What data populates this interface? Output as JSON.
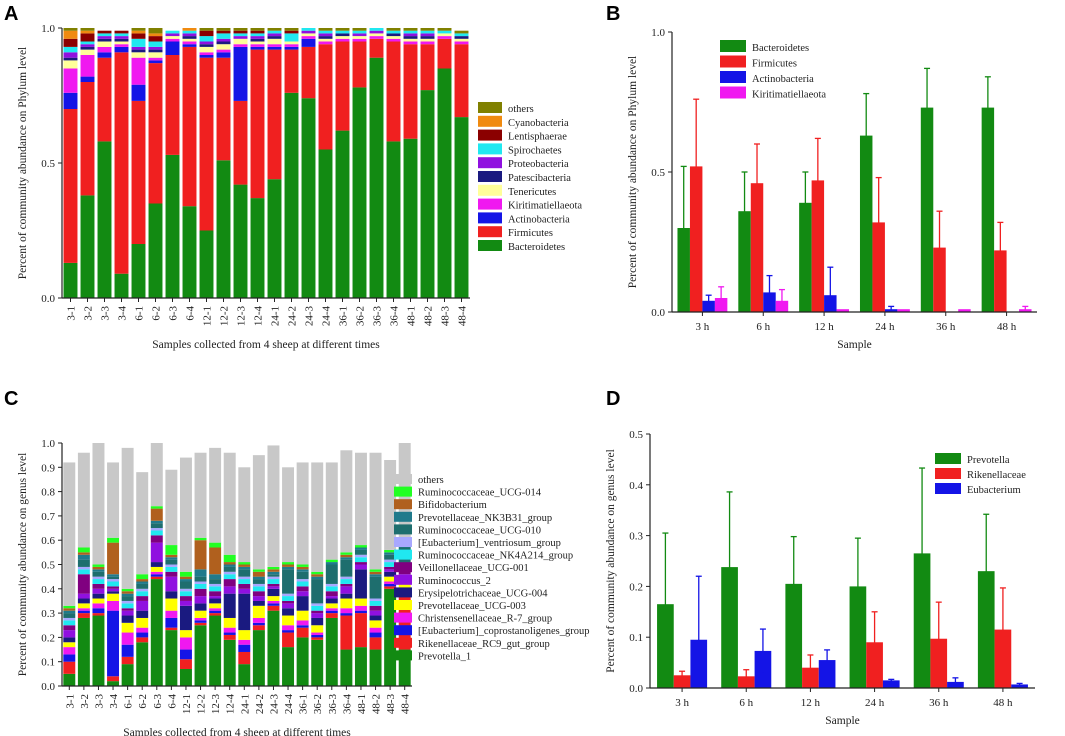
{
  "panel_labels": [
    "A",
    "B",
    "C",
    "D"
  ],
  "chart_data": [
    {
      "panel": "A",
      "type": "bar",
      "stacked": true,
      "xlabel": "Samples collected from 4 sheep at different times",
      "ylabel": "Percent of community abundance on Phylum level",
      "ylim": [
        0,
        1.0
      ],
      "yticks": [
        "0.0",
        "0.5",
        "1.0"
      ],
      "legend_position": "right",
      "categories": [
        "3-1",
        "3-2",
        "3-3",
        "3-4",
        "6-1",
        "6-2",
        "6-3",
        "6-4",
        "12-1",
        "12-2",
        "12-3",
        "12-4",
        "24-1",
        "24-2",
        "24-3",
        "24-4",
        "36-1",
        "36-2",
        "36-3",
        "36-4",
        "48-1",
        "48-2",
        "48-3",
        "48-4"
      ],
      "series": [
        {
          "name": "Bacteroidetes",
          "color": "#128a12",
          "values": [
            0.13,
            0.38,
            0.58,
            0.09,
            0.2,
            0.35,
            0.53,
            0.34,
            0.25,
            0.51,
            0.42,
            0.37,
            0.44,
            0.76,
            0.74,
            0.55,
            0.62,
            0.78,
            0.89,
            0.58,
            0.59,
            0.77,
            0.85,
            0.67
          ]
        },
        {
          "name": "Firmicutes",
          "color": "#f02020",
          "values": [
            0.57,
            0.42,
            0.31,
            0.82,
            0.53,
            0.52,
            0.37,
            0.59,
            0.64,
            0.38,
            0.31,
            0.55,
            0.48,
            0.16,
            0.19,
            0.39,
            0.33,
            0.17,
            0.07,
            0.37,
            0.35,
            0.17,
            0.11,
            0.27
          ]
        },
        {
          "name": "Actinobacteria",
          "color": "#1414e6",
          "values": [
            0.06,
            0.02,
            0.02,
            0.02,
            0.06,
            0.01,
            0.05,
            0.01,
            0.01,
            0.02,
            0.2,
            0.01,
            0.01,
            0.01,
            0.03,
            0.0,
            0.0,
            0.0,
            0.0,
            0.0,
            0.0,
            0.0,
            0.0,
            0.0
          ]
        },
        {
          "name": "Kiritimatiellaeota",
          "color": "#f018f0",
          "values": [
            0.09,
            0.08,
            0.02,
            0.01,
            0.1,
            0.01,
            0.01,
            0.01,
            0.01,
            0.01,
            0.01,
            0.01,
            0.01,
            0.01,
            0.01,
            0.01,
            0.01,
            0.01,
            0.01,
            0.01,
            0.01,
            0.01,
            0.01,
            0.01
          ]
        },
        {
          "name": "Tenericutes",
          "color": "#ffff99",
          "values": [
            0.03,
            0.02,
            0.02,
            0.01,
            0.02,
            0.02,
            0.01,
            0.01,
            0.02,
            0.02,
            0.02,
            0.01,
            0.02,
            0.01,
            0.01,
            0.01,
            0.01,
            0.01,
            0.01,
            0.01,
            0.01,
            0.01,
            0.01,
            0.01
          ]
        },
        {
          "name": "Patescibacteria",
          "color": "#1a1a80",
          "values": [
            0.01,
            0.01,
            0.01,
            0.01,
            0.01,
            0.01,
            0.0,
            0.01,
            0.01,
            0.01,
            0.0,
            0.01,
            0.01,
            0.0,
            0.0,
            0.01,
            0.01,
            0.0,
            0.0,
            0.01,
            0.01,
            0.01,
            0.0,
            0.01
          ]
        },
        {
          "name": "Proteobacteria",
          "color": "#9010e0",
          "values": [
            0.02,
            0.01,
            0.01,
            0.01,
            0.01,
            0.01,
            0.01,
            0.01,
            0.01,
            0.01,
            0.01,
            0.01,
            0.01,
            0.0,
            0.01,
            0.01,
            0.0,
            0.01,
            0.01,
            0.0,
            0.01,
            0.01,
            0.0,
            0.0
          ]
        },
        {
          "name": "Spirochaetes",
          "color": "#20e8f0",
          "values": [
            0.02,
            0.01,
            0.01,
            0.01,
            0.03,
            0.02,
            0.01,
            0.01,
            0.02,
            0.02,
            0.01,
            0.01,
            0.01,
            0.03,
            0.01,
            0.01,
            0.01,
            0.01,
            0.01,
            0.01,
            0.01,
            0.01,
            0.01,
            0.01
          ]
        },
        {
          "name": "Lentisphaerae",
          "color": "#8b0000",
          "values": [
            0.03,
            0.03,
            0.01,
            0.01,
            0.02,
            0.02,
            0.0,
            0.0,
            0.02,
            0.01,
            0.01,
            0.01,
            0.0,
            0.01,
            0.0,
            0.0,
            0.0,
            0.0,
            0.0,
            0.0,
            0.0,
            0.0,
            0.0,
            0.0
          ]
        },
        {
          "name": "Cyanobacteria",
          "color": "#f08a10",
          "values": [
            0.03,
            0.01,
            0.0,
            0.0,
            0.01,
            0.01,
            0.0,
            0.01,
            0.0,
            0.0,
            0.0,
            0.0,
            0.0,
            0.0,
            0.0,
            0.0,
            0.0,
            0.0,
            0.0,
            0.0,
            0.0,
            0.0,
            0.0,
            0.0
          ]
        },
        {
          "name": "others",
          "color": "#808000",
          "values": [
            0.01,
            0.01,
            0.0,
            0.0,
            0.01,
            0.02,
            0.0,
            0.0,
            0.01,
            0.01,
            0.01,
            0.01,
            0.01,
            0.01,
            0.0,
            0.01,
            0.01,
            0.01,
            0.0,
            0.01,
            0.01,
            0.01,
            0.01,
            0.01
          ]
        }
      ]
    },
    {
      "panel": "B",
      "type": "bar",
      "error_bars": true,
      "xlabel": "Sample",
      "ylabel": "Percent of community abundance on Phylum level",
      "ylim": [
        0,
        1.0
      ],
      "yticks": [
        "0.0",
        "0.5",
        "1.0"
      ],
      "legend_position": "top-left",
      "categories": [
        "3 h",
        "6 h",
        "12 h",
        "24 h",
        "36 h",
        "48 h"
      ],
      "series": [
        {
          "name": "Bacteroidetes",
          "color": "#128a12",
          "values": [
            0.3,
            0.36,
            0.39,
            0.63,
            0.73,
            0.73
          ],
          "errors": [
            0.22,
            0.14,
            0.11,
            0.15,
            0.14,
            0.11
          ]
        },
        {
          "name": "Firmicutes",
          "color": "#f02020",
          "values": [
            0.52,
            0.46,
            0.47,
            0.32,
            0.23,
            0.22
          ],
          "errors": [
            0.24,
            0.14,
            0.15,
            0.16,
            0.13,
            0.1
          ]
        },
        {
          "name": "Actinobacteria",
          "color": "#1414e6",
          "values": [
            0.04,
            0.07,
            0.06,
            0.01,
            0.0,
            0.0
          ],
          "errors": [
            0.02,
            0.06,
            0.1,
            0.01,
            0.0,
            0.0
          ]
        },
        {
          "name": "Kiritimatiellaeota",
          "color": "#f018f0",
          "values": [
            0.05,
            0.04,
            0.01,
            0.01,
            0.01,
            0.01
          ],
          "errors": [
            0.04,
            0.04,
            0.0,
            0.0,
            0.0,
            0.01
          ]
        }
      ]
    },
    {
      "panel": "C",
      "type": "bar",
      "stacked": true,
      "xlabel": "Samples collected from 4 sheep at different times",
      "ylabel": "Percent of community abundance on genus level",
      "ylim": [
        0,
        1.0
      ],
      "yticks": [
        "0.0",
        "0.1",
        "0.2",
        "0.3",
        "0.4",
        "0.5",
        "0.6",
        "0.7",
        "0.8",
        "0.9",
        "1.0"
      ],
      "legend_position": "right",
      "categories": [
        "3-1",
        "3-2",
        "3-3",
        "3-4",
        "6-1",
        "6-2",
        "6-3",
        "6-4",
        "12-1",
        "12-2",
        "12-3",
        "12-4",
        "24-1",
        "24-2",
        "24-3",
        "24-4",
        "36-1",
        "36-2",
        "36-3",
        "36-4",
        "48-1",
        "48-2",
        "48-3",
        "48-4"
      ],
      "series": [
        {
          "name": "Prevotella_1",
          "color": "#128a12",
          "values": [
            0.05,
            0.28,
            0.29,
            0.02,
            0.09,
            0.18,
            0.44,
            0.23,
            0.07,
            0.25,
            0.29,
            0.19,
            0.09,
            0.23,
            0.31,
            0.16,
            0.2,
            0.19,
            0.28,
            0.15,
            0.16,
            0.15,
            0.4,
            0.15
          ]
        },
        {
          "name": "Rikenellaceae_RC9_gut_group",
          "color": "#f02020",
          "values": [
            0.05,
            0.02,
            0.01,
            0.02,
            0.03,
            0.02,
            0.01,
            0.01,
            0.04,
            0.01,
            0.01,
            0.02,
            0.05,
            0.02,
            0.02,
            0.06,
            0.04,
            0.01,
            0.02,
            0.14,
            0.14,
            0.05,
            0.01,
            0.22
          ]
        },
        {
          "name": "[Eubacterium]_coprostanoligenes_group",
          "color": "#1414e6",
          "values": [
            0.03,
            0.01,
            0.02,
            0.27,
            0.05,
            0.02,
            0.01,
            0.04,
            0.04,
            0.01,
            0.01,
            0.01,
            0.03,
            0.01,
            0.01,
            0.01,
            0.01,
            0.01,
            0.01,
            0.01,
            0.01,
            0.02,
            0.01,
            0.01
          ]
        },
        {
          "name": "Christensenellaceae_R-7_group",
          "color": "#f018f0",
          "values": [
            0.03,
            0.01,
            0.02,
            0.04,
            0.05,
            0.02,
            0.01,
            0.03,
            0.05,
            0.01,
            0.01,
            0.02,
            0.02,
            0.02,
            0.01,
            0.02,
            0.02,
            0.01,
            0.01,
            0.02,
            0.02,
            0.02,
            0.01,
            0.02
          ]
        },
        {
          "name": "Prevotellaceae_UCG-003",
          "color": "#ffff00",
          "values": [
            0.02,
            0.02,
            0.02,
            0.03,
            0.04,
            0.04,
            0.02,
            0.05,
            0.03,
            0.03,
            0.02,
            0.04,
            0.04,
            0.05,
            0.02,
            0.04,
            0.04,
            0.03,
            0.02,
            0.04,
            0.03,
            0.03,
            0.02,
            0.03
          ]
        },
        {
          "name": "Erysipelotrichaceae_UCG-004",
          "color": "#1a1a80",
          "values": [
            0.02,
            0.02,
            0.02,
            0.01,
            0.03,
            0.03,
            0.02,
            0.03,
            0.1,
            0.03,
            0.02,
            0.1,
            0.15,
            0.02,
            0.03,
            0.03,
            0.06,
            0.03,
            0.02,
            0.02,
            0.12,
            0.02,
            0.02,
            0.01
          ]
        },
        {
          "name": "Ruminococcus_2",
          "color": "#9010e0",
          "values": [
            0.03,
            0.02,
            0.02,
            0.01,
            0.02,
            0.04,
            0.08,
            0.06,
            0.02,
            0.03,
            0.01,
            0.03,
            0.02,
            0.02,
            0.01,
            0.02,
            0.02,
            0.02,
            0.01,
            0.03,
            0.02,
            0.02,
            0.01,
            0.02
          ]
        },
        {
          "name": "Veillonellaceae_UCG-001",
          "color": "#800080",
          "values": [
            0.02,
            0.08,
            0.02,
            0.01,
            0.01,
            0.02,
            0.03,
            0.02,
            0.02,
            0.03,
            0.02,
            0.03,
            0.02,
            0.02,
            0.01,
            0.01,
            0.02,
            0.01,
            0.02,
            0.01,
            0.01,
            0.02,
            0.01,
            0.01
          ]
        },
        {
          "name": "Ruminococcaceae_NK4A214_group",
          "color": "#20e8f0",
          "values": [
            0.02,
            0.02,
            0.02,
            0.02,
            0.02,
            0.02,
            0.02,
            0.02,
            0.02,
            0.02,
            0.02,
            0.02,
            0.02,
            0.02,
            0.02,
            0.02,
            0.02,
            0.02,
            0.02,
            0.02,
            0.02,
            0.02,
            0.02,
            0.02
          ]
        },
        {
          "name": "[Eubacterium]_ventriosum_group",
          "color": "#a8a8ff",
          "values": [
            0.01,
            0.01,
            0.01,
            0.01,
            0.01,
            0.01,
            0.01,
            0.01,
            0.01,
            0.01,
            0.01,
            0.01,
            0.01,
            0.01,
            0.01,
            0.01,
            0.01,
            0.01,
            0.01,
            0.01,
            0.01,
            0.01,
            0.01,
            0.01
          ]
        },
        {
          "name": "Ruminococcaceae_UCG-010",
          "color": "#1e6e6e",
          "values": [
            0.02,
            0.03,
            0.02,
            0.01,
            0.02,
            0.02,
            0.02,
            0.02,
            0.03,
            0.02,
            0.02,
            0.02,
            0.03,
            0.02,
            0.01,
            0.1,
            0.03,
            0.1,
            0.08,
            0.07,
            0.02,
            0.09,
            0.02,
            0.07
          ]
        },
        {
          "name": "Prevotellaceae_NK3B31_group",
          "color": "#207a8c",
          "values": [
            0.01,
            0.02,
            0.01,
            0.01,
            0.01,
            0.01,
            0.01,
            0.01,
            0.01,
            0.03,
            0.02,
            0.01,
            0.01,
            0.01,
            0.01,
            0.01,
            0.01,
            0.01,
            0.01,
            0.01,
            0.01,
            0.01,
            0.01,
            0.01
          ]
        },
        {
          "name": "Bifidobacterium",
          "color": "#b0601e",
          "values": [
            0.01,
            0.01,
            0.01,
            0.13,
            0.01,
            0.01,
            0.05,
            0.01,
            0.01,
            0.12,
            0.11,
            0.01,
            0.01,
            0.02,
            0.01,
            0.01,
            0.01,
            0.01,
            0.0,
            0.01,
            0.0,
            0.01,
            0.0,
            0.0
          ]
        },
        {
          "name": "Ruminococcaceae_UCG-014",
          "color": "#22ff22",
          "values": [
            0.01,
            0.02,
            0.01,
            0.02,
            0.01,
            0.02,
            0.01,
            0.04,
            0.02,
            0.01,
            0.02,
            0.03,
            0.01,
            0.01,
            0.01,
            0.01,
            0.01,
            0.01,
            0.01,
            0.01,
            0.01,
            0.01,
            0.01,
            0.01
          ]
        },
        {
          "name": "others",
          "color": "#c8c8c8",
          "values": [
            0.59,
            0.39,
            0.5,
            0.31,
            0.58,
            0.42,
            0.26,
            0.31,
            0.47,
            0.35,
            0.39,
            0.42,
            0.39,
            0.47,
            0.5,
            0.39,
            0.42,
            0.45,
            0.4,
            0.42,
            0.38,
            0.48,
            0.37,
            0.43
          ]
        }
      ]
    },
    {
      "panel": "D",
      "type": "bar",
      "error_bars": true,
      "xlabel": "Sample",
      "ylabel": "Percent of community abundance on genus level",
      "ylim": [
        0,
        0.5
      ],
      "yticks": [
        "0.0",
        "0.1",
        "0.2",
        "0.3",
        "0.4",
        "0.5"
      ],
      "legend_position": "top-right",
      "categories": [
        "3 h",
        "6 h",
        "12 h",
        "24 h",
        "36 h",
        "48 h"
      ],
      "series": [
        {
          "name": "Prevotella",
          "color": "#128a12",
          "values": [
            0.165,
            0.238,
            0.205,
            0.2,
            0.265,
            0.23
          ],
          "errors": [
            0.14,
            0.148,
            0.093,
            0.095,
            0.168,
            0.112
          ]
        },
        {
          "name": "Rikenellaceae",
          "color": "#f02020",
          "values": [
            0.025,
            0.023,
            0.04,
            0.09,
            0.097,
            0.115
          ],
          "errors": [
            0.008,
            0.013,
            0.025,
            0.06,
            0.072,
            0.082
          ]
        },
        {
          "name": "Eubacterium",
          "color": "#1414e6",
          "values": [
            0.095,
            0.073,
            0.055,
            0.015,
            0.012,
            0.007
          ],
          "errors": [
            0.125,
            0.043,
            0.02,
            0.002,
            0.008,
            0.002
          ]
        }
      ]
    }
  ]
}
